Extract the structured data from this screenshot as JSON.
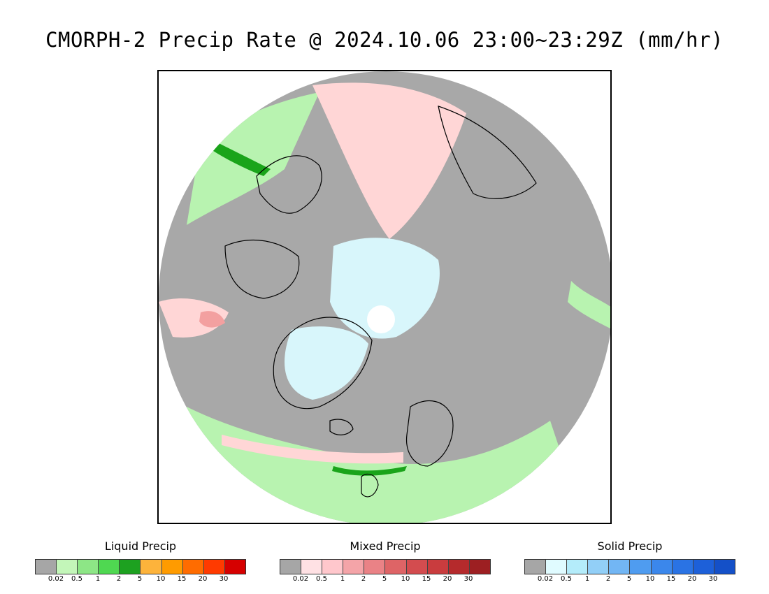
{
  "title": "CMORPH-2 Precip Rate @ 2024.10.06 23:00~23:29Z (mm/hr)",
  "map": {
    "projection": "north-polar-stereographic",
    "land_outline_color": "#000000",
    "colors": {
      "no_precip": "#a8a8a8",
      "liquid_light": "#b8f3b0",
      "liquid_mid": "#8ee88a",
      "liquid_heavy": "#1aa41a",
      "mixed_light": "#ffd6d6",
      "mixed_mid": "#f3a0a0",
      "solid_light": "#d8f6fb",
      "pole_gap": "#ffffff"
    }
  },
  "legends": [
    {
      "title": "Liquid Precip",
      "colors": [
        "#a6a6a6",
        "#c3f6b9",
        "#8de686",
        "#4fd851",
        "#1da120",
        "#fdb33b",
        "#ff9b00",
        "#ff6c00",
        "#ff3a00",
        "#d60000"
      ],
      "ticks": [
        "0.02",
        "0.5",
        "1",
        "2",
        "5",
        "10",
        "15",
        "20",
        "30"
      ]
    },
    {
      "title": "Mixed Precip",
      "colors": [
        "#a6a6a6",
        "#ffe1e4",
        "#ffc7cc",
        "#f4a4a8",
        "#ea8286",
        "#de6466",
        "#d34c4f",
        "#c93c3e",
        "#b52a2c",
        "#9d1f22"
      ],
      "ticks": [
        "0.02",
        "0.5",
        "1",
        "2",
        "5",
        "10",
        "15",
        "20",
        "30"
      ]
    },
    {
      "title": "Solid Precip",
      "colors": [
        "#a6a6a6",
        "#e0fbff",
        "#b4ecfa",
        "#92cff7",
        "#72b6f4",
        "#4f9cf0",
        "#3b87eb",
        "#2a73e4",
        "#1d60d9",
        "#1450c8"
      ],
      "ticks": [
        "0.02",
        "0.5",
        "1",
        "2",
        "5",
        "10",
        "15",
        "20",
        "30"
      ]
    }
  ]
}
